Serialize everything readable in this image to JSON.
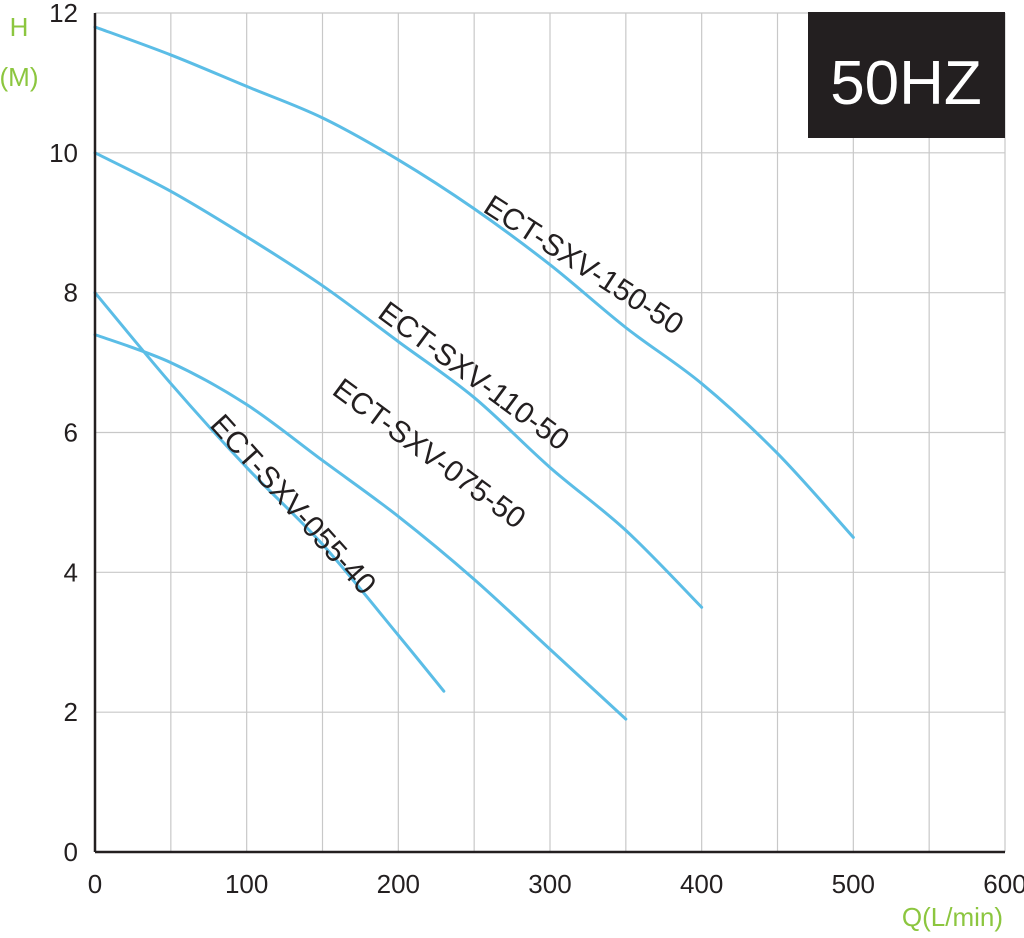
{
  "chart_data": {
    "type": "line",
    "badge": "50HZ",
    "ylabel_symbol": "H",
    "ylabel_unit": "(M)",
    "xlabel": "Q(L/min)",
    "xlim": [
      0,
      600
    ],
    "ylim": [
      0,
      12
    ],
    "x_ticks": [
      "0",
      "100",
      "200",
      "300",
      "400",
      "500",
      "600"
    ],
    "y_ticks": [
      "0",
      "2",
      "4",
      "6",
      "8",
      "10",
      "12"
    ],
    "grid": true,
    "colors": {
      "line": "#5bbde6",
      "grid": "#c8c8c8",
      "axis": "#231f20",
      "unit_label": "#8cc63f",
      "badge_bg": "#231f20"
    },
    "series": [
      {
        "name": "ECT-SXV-150-50",
        "x": [
          0,
          50,
          100,
          150,
          200,
          250,
          300,
          350,
          400,
          450,
          500
        ],
        "y": [
          11.8,
          11.4,
          10.95,
          10.5,
          9.9,
          9.2,
          8.4,
          7.5,
          6.7,
          5.7,
          4.5
        ]
      },
      {
        "name": "ECT-SXV-110-50",
        "x": [
          0,
          50,
          100,
          150,
          200,
          250,
          300,
          350,
          400
        ],
        "y": [
          10.0,
          9.45,
          8.8,
          8.1,
          7.3,
          6.5,
          5.5,
          4.6,
          3.5
        ]
      },
      {
        "name": "ECT-SXV-075-50",
        "x": [
          0,
          50,
          100,
          150,
          200,
          250,
          300,
          350
        ],
        "y": [
          7.4,
          7.0,
          6.4,
          5.6,
          4.8,
          3.9,
          2.9,
          1.9
        ]
      },
      {
        "name": "ECT-SXV-055-40",
        "x": [
          0,
          50,
          100,
          150,
          200,
          230
        ],
        "y": [
          8.0,
          6.7,
          5.5,
          4.4,
          3.1,
          2.3
        ]
      }
    ]
  }
}
